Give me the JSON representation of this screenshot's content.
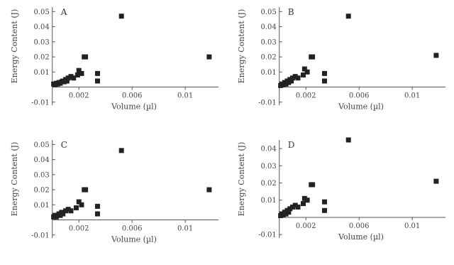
{
  "chart_data": [
    {
      "type": "scatter",
      "panel_label": "A",
      "xlabel": "Volume (µl)",
      "ylabel": "Energy Content (J)",
      "xlim": [
        -0.0002,
        0.0125
      ],
      "ylim": [
        -0.012,
        0.053
      ],
      "x_ticks": [
        {
          "value": 0.002,
          "label": "0.002"
        },
        {
          "value": 0.006,
          "label": "0.006"
        },
        {
          "value": 0.01,
          "label": "0.01"
        }
      ],
      "y_ticks": [
        {
          "value": -0.01,
          "label": "-0.01"
        },
        {
          "value": 0.01,
          "label": "0.01"
        },
        {
          "value": 0.02,
          "label": "0.02"
        },
        {
          "value": 0.03,
          "label": "0.03"
        },
        {
          "value": 0.04,
          "label": "0.04"
        },
        {
          "value": 0.05,
          "label": "0.05"
        }
      ],
      "points": [
        {
          "x": 0.0001,
          "y": 0.002
        },
        {
          "x": 0.0002,
          "y": 0.0015
        },
        {
          "x": 0.0003,
          "y": 0.0025
        },
        {
          "x": 0.0004,
          "y": 0.002
        },
        {
          "x": 0.0005,
          "y": 0.003
        },
        {
          "x": 0.0006,
          "y": 0.0025
        },
        {
          "x": 0.0007,
          "y": 0.0035
        },
        {
          "x": 0.0008,
          "y": 0.004
        },
        {
          "x": 0.0009,
          "y": 0.0035
        },
        {
          "x": 0.001,
          "y": 0.005
        },
        {
          "x": 0.0011,
          "y": 0.004
        },
        {
          "x": 0.0012,
          "y": 0.006
        },
        {
          "x": 0.0014,
          "y": 0.007
        },
        {
          "x": 0.0016,
          "y": 0.006
        },
        {
          "x": 0.0019,
          "y": 0.008
        },
        {
          "x": 0.002,
          "y": 0.011
        },
        {
          "x": 0.0022,
          "y": 0.009
        },
        {
          "x": 0.0024,
          "y": 0.02
        },
        {
          "x": 0.0025,
          "y": 0.02
        },
        {
          "x": 0.0034,
          "y": 0.009
        },
        {
          "x": 0.0034,
          "y": 0.004
        },
        {
          "x": 0.0052,
          "y": 0.047
        },
        {
          "x": 0.0118,
          "y": 0.02
        }
      ]
    },
    {
      "type": "scatter",
      "panel_label": "B",
      "xlabel": "Volume (µl)",
      "ylabel": "Energy Content (J)",
      "xlim": [
        -0.0002,
        0.0125
      ],
      "ylim": [
        -0.012,
        0.053
      ],
      "x_ticks": [
        {
          "value": 0.002,
          "label": "0.002"
        },
        {
          "value": 0.006,
          "label": "0.006"
        },
        {
          "value": 0.01,
          "label": "0.01"
        }
      ],
      "y_ticks": [
        {
          "value": -0.01,
          "label": "-0.01"
        },
        {
          "value": 0.01,
          "label": "0.01"
        },
        {
          "value": 0.02,
          "label": "0.02"
        },
        {
          "value": 0.03,
          "label": "0.03"
        },
        {
          "value": 0.04,
          "label": "0.04"
        },
        {
          "value": 0.05,
          "label": "0.05"
        }
      ],
      "points": [
        {
          "x": 0.0001,
          "y": 0.001
        },
        {
          "x": 0.0002,
          "y": 0.002
        },
        {
          "x": 0.0003,
          "y": 0.0015
        },
        {
          "x": 0.0004,
          "y": 0.003
        },
        {
          "x": 0.0005,
          "y": 0.002
        },
        {
          "x": 0.0006,
          "y": 0.004
        },
        {
          "x": 0.0007,
          "y": 0.003
        },
        {
          "x": 0.0008,
          "y": 0.005
        },
        {
          "x": 0.0009,
          "y": 0.004
        },
        {
          "x": 0.001,
          "y": 0.006
        },
        {
          "x": 0.0012,
          "y": 0.007
        },
        {
          "x": 0.0014,
          "y": 0.006
        },
        {
          "x": 0.0018,
          "y": 0.008
        },
        {
          "x": 0.0019,
          "y": 0.012
        },
        {
          "x": 0.0021,
          "y": 0.01
        },
        {
          "x": 0.0024,
          "y": 0.02
        },
        {
          "x": 0.0025,
          "y": 0.02
        },
        {
          "x": 0.0034,
          "y": 0.009
        },
        {
          "x": 0.0034,
          "y": 0.004
        },
        {
          "x": 0.0052,
          "y": 0.047
        },
        {
          "x": 0.0118,
          "y": 0.021
        }
      ]
    },
    {
      "type": "scatter",
      "panel_label": "C",
      "xlabel": "Volume (µl)",
      "ylabel": "Energy Content (J)",
      "xlim": [
        -0.0002,
        0.0125
      ],
      "ylim": [
        -0.012,
        0.053
      ],
      "x_ticks": [
        {
          "value": 0.002,
          "label": "0.002"
        },
        {
          "value": 0.006,
          "label": "0.006"
        },
        {
          "value": 0.01,
          "label": "0.01"
        }
      ],
      "y_ticks": [
        {
          "value": -0.01,
          "label": "-0.01"
        },
        {
          "value": 0.01,
          "label": "0.01"
        },
        {
          "value": 0.02,
          "label": "0.02"
        },
        {
          "value": 0.03,
          "label": "0.03"
        },
        {
          "value": 0.04,
          "label": "0.04"
        },
        {
          "value": 0.05,
          "label": "0.05"
        }
      ],
      "points": [
        {
          "x": 0.0001,
          "y": 0.002
        },
        {
          "x": 0.0002,
          "y": 0.003
        },
        {
          "x": 0.0003,
          "y": 0.002
        },
        {
          "x": 0.0004,
          "y": 0.003
        },
        {
          "x": 0.0005,
          "y": 0.004
        },
        {
          "x": 0.0006,
          "y": 0.003
        },
        {
          "x": 0.0007,
          "y": 0.005
        },
        {
          "x": 0.0008,
          "y": 0.004
        },
        {
          "x": 0.001,
          "y": 0.006
        },
        {
          "x": 0.0012,
          "y": 0.007
        },
        {
          "x": 0.0014,
          "y": 0.006
        },
        {
          "x": 0.0018,
          "y": 0.008
        },
        {
          "x": 0.002,
          "y": 0.012
        },
        {
          "x": 0.0022,
          "y": 0.01
        },
        {
          "x": 0.0024,
          "y": 0.02
        },
        {
          "x": 0.0025,
          "y": 0.02
        },
        {
          "x": 0.0034,
          "y": 0.009
        },
        {
          "x": 0.0034,
          "y": 0.004
        },
        {
          "x": 0.0052,
          "y": 0.046
        },
        {
          "x": 0.0118,
          "y": 0.02
        }
      ]
    },
    {
      "type": "scatter",
      "panel_label": "D",
      "xlabel": "Volume (µl)",
      "ylabel": "Energy Content (J)",
      "xlim": [
        -0.0002,
        0.0125
      ],
      "ylim": [
        -0.012,
        0.045
      ],
      "x_ticks": [
        {
          "value": 0.002,
          "label": "0.002"
        },
        {
          "value": 0.006,
          "label": "0.006"
        },
        {
          "value": 0.01,
          "label": "0.01"
        }
      ],
      "y_ticks": [
        {
          "value": -0.01,
          "label": "-0.01"
        },
        {
          "value": 0.01,
          "label": "0.01"
        },
        {
          "value": 0.02,
          "label": "0.02"
        },
        {
          "value": 0.03,
          "label": "0.03"
        },
        {
          "value": 0.04,
          "label": "0.04"
        }
      ],
      "points": [
        {
          "x": 0.0001,
          "y": 0.001
        },
        {
          "x": 0.0002,
          "y": 0.002
        },
        {
          "x": 0.0003,
          "y": 0.0015
        },
        {
          "x": 0.0004,
          "y": 0.003
        },
        {
          "x": 0.0005,
          "y": 0.002
        },
        {
          "x": 0.0006,
          "y": 0.004
        },
        {
          "x": 0.0007,
          "y": 0.003
        },
        {
          "x": 0.0008,
          "y": 0.005
        },
        {
          "x": 0.001,
          "y": 0.006
        },
        {
          "x": 0.0012,
          "y": 0.007
        },
        {
          "x": 0.0014,
          "y": 0.006
        },
        {
          "x": 0.0018,
          "y": 0.008
        },
        {
          "x": 0.0019,
          "y": 0.011
        },
        {
          "x": 0.0021,
          "y": 0.01
        },
        {
          "x": 0.0024,
          "y": 0.019
        },
        {
          "x": 0.0025,
          "y": 0.019
        },
        {
          "x": 0.0034,
          "y": 0.009
        },
        {
          "x": 0.0034,
          "y": 0.004
        },
        {
          "x": 0.0052,
          "y": 0.045
        },
        {
          "x": 0.0118,
          "y": 0.021
        }
      ]
    }
  ]
}
